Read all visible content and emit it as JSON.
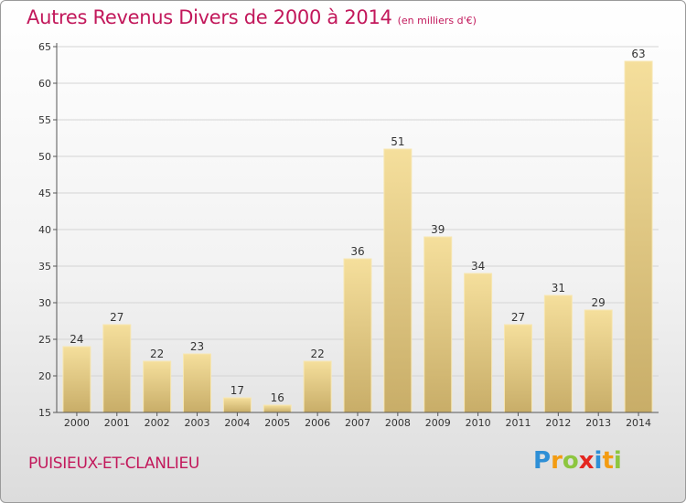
{
  "title": "Autres Revenus Divers de 2000 à 2014",
  "unit_note": "(en milliers d'€)",
  "location": "PUISIEUX-ET-CLANLIEU",
  "logo": {
    "text": "Proxiti",
    "letters": [
      {
        "ch": "P",
        "color": "#2e8fd6"
      },
      {
        "ch": "r",
        "color": "#f39c12"
      },
      {
        "ch": "o",
        "color": "#8dc63f"
      },
      {
        "ch": "x",
        "color": "#e4261f"
      },
      {
        "ch": "i",
        "color": "#2e8fd6"
      },
      {
        "ch": "t",
        "color": "#f39c12"
      },
      {
        "ch": "i",
        "color": "#8dc63f"
      }
    ]
  },
  "colors": {
    "accent": "#c2185b",
    "bar_light": "#f5df9c",
    "bar_dark": "#c8ad68",
    "grid": "#d4d4d4"
  },
  "chart_data": {
    "type": "bar",
    "categories": [
      "2000",
      "2001",
      "2002",
      "2003",
      "2004",
      "2005",
      "2006",
      "2007",
      "2008",
      "2009",
      "2010",
      "2011",
      "2012",
      "2013",
      "2014"
    ],
    "values": [
      24,
      27,
      22,
      23,
      17,
      16,
      22,
      36,
      51,
      39,
      34,
      27,
      31,
      29,
      63
    ],
    "ylim": [
      15,
      65
    ],
    "yticks": [
      15,
      20,
      25,
      30,
      35,
      40,
      45,
      50,
      55,
      60,
      65
    ],
    "grid": true,
    "xlabel": "",
    "ylabel": ""
  }
}
